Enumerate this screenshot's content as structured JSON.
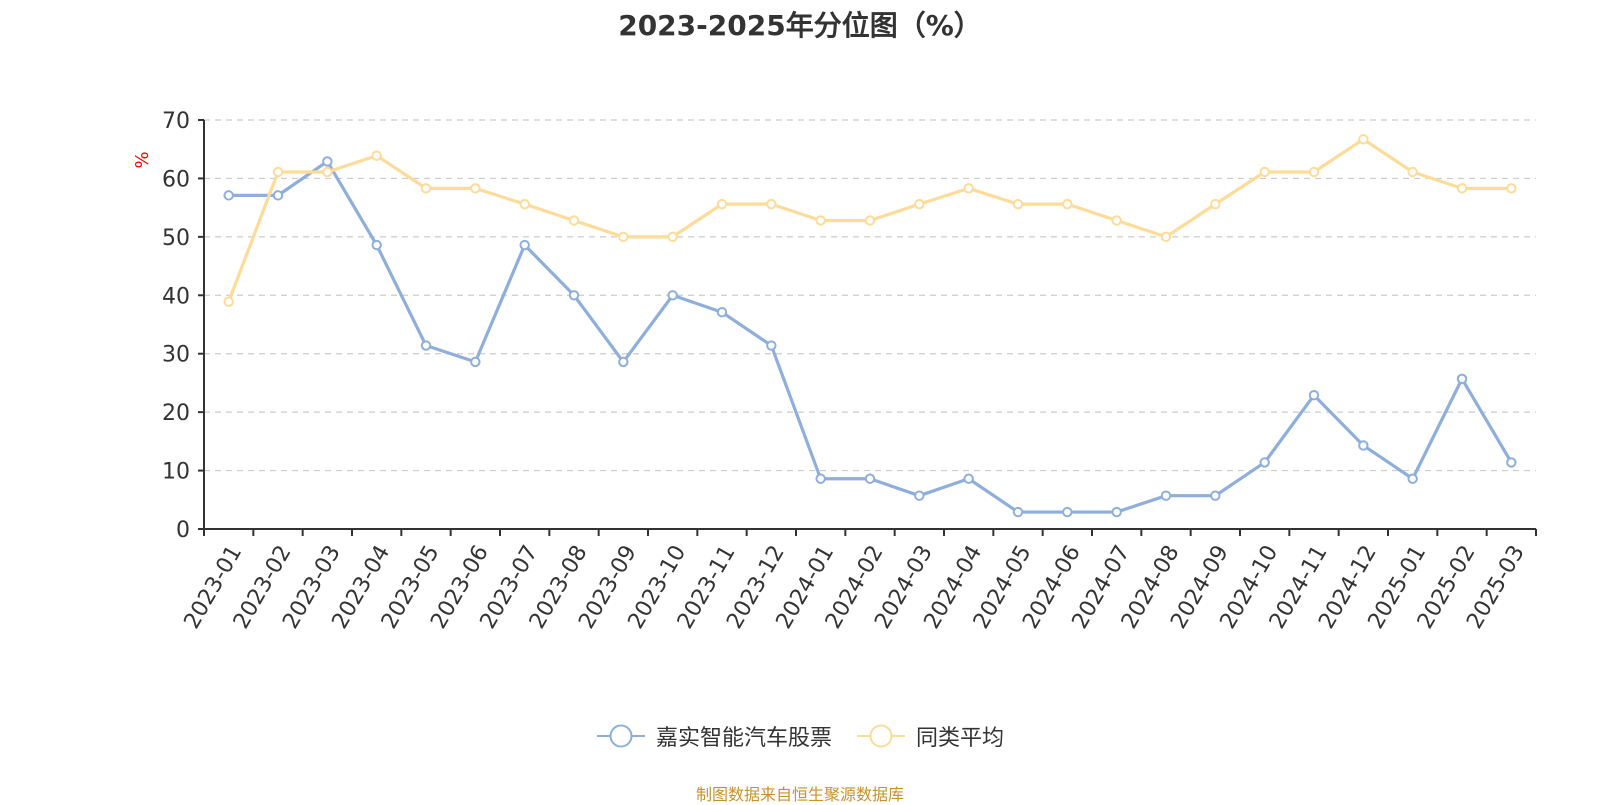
{
  "chart_data": {
    "type": "line",
    "title": "2023-2025年分位图（%）",
    "ylabel": "%",
    "xlabel": "",
    "ylim": [
      0,
      70
    ],
    "yticks": [
      0,
      10,
      20,
      30,
      40,
      50,
      60,
      70
    ],
    "grid": true,
    "legend_position": "bottom",
    "categories": [
      "2023-01",
      "2023-02",
      "2023-03",
      "2023-04",
      "2023-05",
      "2023-06",
      "2023-07",
      "2023-08",
      "2023-09",
      "2023-10",
      "2023-11",
      "2023-12",
      "2024-01",
      "2024-02",
      "2024-03",
      "2024-04",
      "2024-05",
      "2024-06",
      "2024-07",
      "2024-08",
      "2024-09",
      "2024-10",
      "2024-11",
      "2024-12",
      "2025-01",
      "2025-02",
      "2025-03"
    ],
    "series": [
      {
        "name": "嘉实智能汽车股票",
        "color": "#8eaedb",
        "values": [
          57.1,
          57.1,
          62.9,
          48.6,
          31.4,
          28.6,
          48.6,
          40.0,
          28.6,
          40.0,
          37.1,
          31.4,
          8.6,
          8.6,
          5.7,
          8.6,
          2.9,
          2.9,
          2.9,
          5.7,
          5.7,
          11.4,
          22.9,
          14.3,
          8.6,
          25.7,
          11.4
        ]
      },
      {
        "name": "同类平均",
        "color": "#fddb98",
        "values": [
          38.9,
          61.1,
          61.1,
          63.9,
          58.3,
          58.3,
          55.6,
          52.8,
          50.0,
          50.0,
          55.6,
          55.6,
          52.8,
          52.8,
          55.6,
          58.3,
          55.6,
          55.6,
          52.8,
          50.0,
          55.6,
          61.1,
          61.1,
          66.7,
          61.1,
          58.3,
          58.3
        ]
      }
    ]
  },
  "source_text": "制图数据来自恒生聚源数据库"
}
